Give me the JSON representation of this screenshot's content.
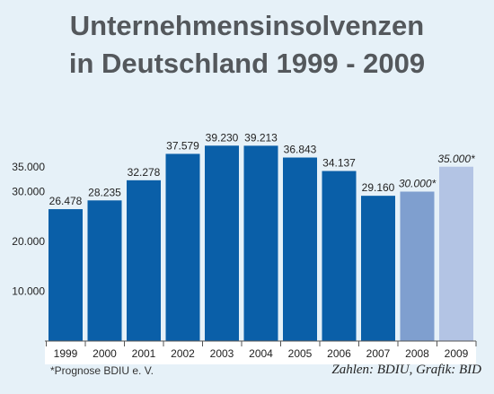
{
  "title_lines": [
    "Unternehmensinsolvenzen",
    "in Deutschland 1999 - 2009"
  ],
  "footnote": "*Prognose BDIU e. V.",
  "source_credit": "Zahlen: BDIU, Grafik: BID",
  "colors": {
    "background": "#e6f1f8",
    "bar_actual": "#0a5fa8",
    "bar_forecast_2008": "#7f9fcf",
    "bar_forecast_2009": "#b3c4e4",
    "title": "#54585c"
  },
  "chart_data": {
    "type": "bar",
    "title": "Unternehmensinsolvenzen in Deutschland 1999 - 2009",
    "xlabel": "",
    "ylabel": "",
    "categories": [
      "1999",
      "2000",
      "2001",
      "2002",
      "2003",
      "2004",
      "2005",
      "2006",
      "2007",
      "2008",
      "2009"
    ],
    "values": [
      26478,
      28235,
      32278,
      37579,
      39230,
      39213,
      36843,
      34137,
      29160,
      30000,
      35000
    ],
    "value_labels": [
      "26.478",
      "28.235",
      "32.278",
      "37.579",
      "39.230",
      "39.213",
      "36.843",
      "34.137",
      "29.160",
      "30.000*",
      "35.000*"
    ],
    "forecast": [
      false,
      false,
      false,
      false,
      false,
      false,
      false,
      false,
      false,
      true,
      true
    ],
    "y_ticks": [
      10000,
      20000,
      30000,
      35000
    ],
    "y_tick_labels": [
      "10.000",
      "20.000",
      "30.000",
      "35.000"
    ],
    "ylim": [
      0,
      42000
    ],
    "grid": false,
    "legend": "none"
  }
}
